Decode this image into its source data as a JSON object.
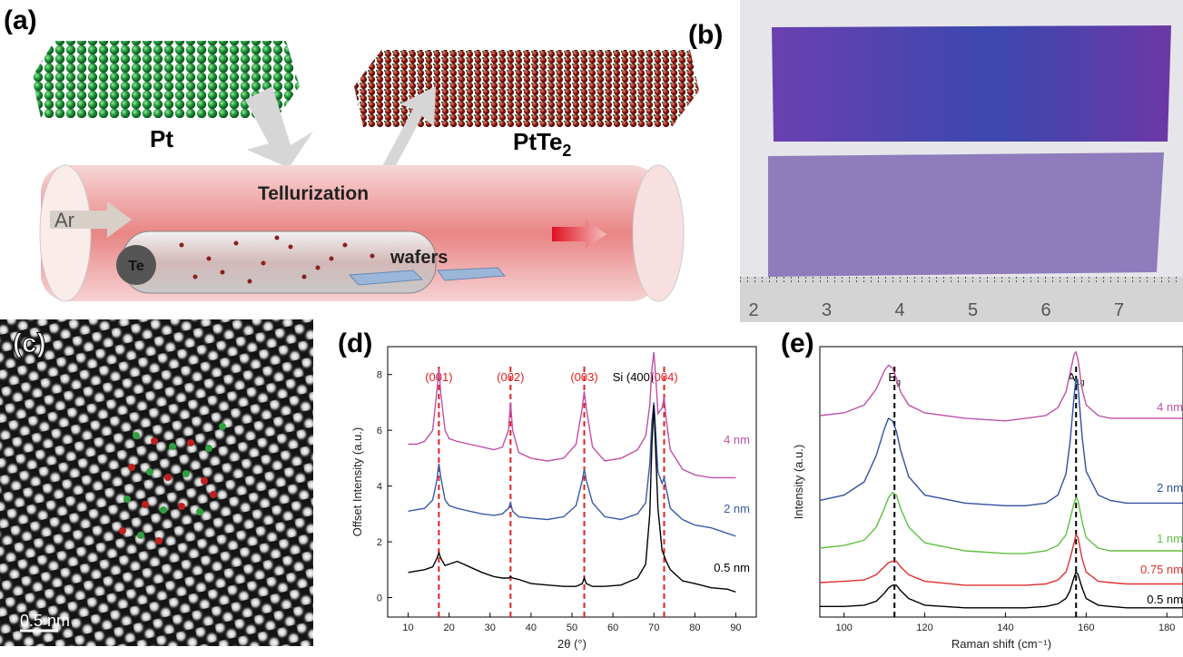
{
  "panel_labels": [
    "(a)",
    "(b)",
    "(c)",
    "(d)",
    "(e)"
  ],
  "schematic": {
    "pt_label": "Pt",
    "ptte2_label": "PtTe",
    "ptte2_subscript": "2",
    "process": "Tellurization",
    "gas": "Ar",
    "source": "Te",
    "substrate": "wafers"
  },
  "photo": {
    "ruler_labels": [
      "2",
      "3",
      "4",
      "5",
      "6",
      "7"
    ]
  },
  "micrograph": {
    "scale_bar": "0.5 nm"
  },
  "chart_data": [
    {
      "type": "line",
      "x_label": "2θ (°)",
      "y_label": "Offset Intensity (a.u.)",
      "x": [
        10,
        12,
        14,
        16,
        17,
        17.5,
        18,
        19,
        20,
        22,
        25,
        28,
        31,
        33,
        34.5,
        35,
        35.5,
        37,
        40,
        44,
        48,
        51,
        52.5,
        53,
        53.5,
        55,
        58,
        62,
        66,
        68,
        69,
        69.5,
        70,
        70.5,
        71,
        72,
        72.5,
        73,
        74,
        77,
        80,
        84,
        88,
        90
      ],
      "series": [
        {
          "name": "4 nm",
          "color": "#c050a8",
          "values": [
            5.5,
            5.5,
            5.6,
            6.0,
            7.4,
            8.2,
            7.3,
            6.0,
            5.7,
            5.6,
            5.5,
            5.4,
            5.3,
            5.4,
            6.0,
            7.0,
            6.0,
            5.2,
            5.0,
            4.9,
            5.0,
            5.5,
            6.8,
            7.4,
            6.8,
            5.4,
            4.9,
            5.0,
            5.3,
            5.8,
            6.9,
            8.2,
            8.8,
            7.8,
            6.6,
            6.8,
            7.2,
            6.4,
            5.3,
            4.6,
            4.4,
            4.3,
            4.3,
            4.3
          ]
        },
        {
          "name": "2 nm",
          "color": "#3a5aa8",
          "values": [
            3.1,
            3.15,
            3.2,
            3.5,
            4.2,
            4.8,
            4.3,
            3.5,
            3.3,
            3.2,
            3.1,
            3.0,
            2.95,
            3.0,
            3.2,
            3.4,
            3.1,
            2.9,
            2.85,
            2.8,
            2.9,
            3.3,
            4.2,
            4.6,
            4.2,
            3.4,
            2.9,
            2.8,
            3.0,
            3.4,
            4.8,
            6.3,
            7.0,
            5.8,
            4.5,
            4.1,
            4.3,
            3.9,
            3.2,
            2.8,
            2.6,
            2.5,
            2.3,
            2.2
          ]
        },
        {
          "name": "0.5 nm",
          "color": "#000000",
          "values": [
            0.9,
            0.95,
            1.0,
            1.1,
            1.4,
            1.6,
            1.4,
            1.15,
            1.2,
            1.3,
            1.1,
            0.9,
            0.75,
            0.7,
            0.7,
            0.75,
            0.7,
            0.65,
            0.5,
            0.45,
            0.4,
            0.4,
            0.5,
            0.7,
            0.5,
            0.4,
            0.4,
            0.45,
            0.7,
            1.2,
            3.0,
            5.5,
            6.9,
            5.0,
            3.2,
            1.7,
            1.5,
            1.3,
            1.0,
            0.6,
            0.5,
            0.35,
            0.3,
            0.2
          ]
        }
      ],
      "xlim": [
        5,
        95
      ],
      "xticks": [
        10,
        20,
        30,
        40,
        50,
        60,
        70,
        80,
        90
      ],
      "ylim": [
        -0.7,
        9
      ],
      "yticks": [
        0,
        2,
        4,
        6,
        8
      ],
      "reference_color": "#e02020",
      "reference_lines": [
        {
          "x": 17.5,
          "label": "(001)"
        },
        {
          "x": 35,
          "label": "(002)"
        },
        {
          "x": 53,
          "label": "(003)"
        },
        {
          "x": 72.5,
          "label": "(004)"
        }
      ],
      "annotations": [
        {
          "x": 70,
          "text": "Si (400)"
        }
      ]
    },
    {
      "type": "line",
      "x_label": "Raman shift (cm⁻¹)",
      "y_label": "Intensity (a.u.)",
      "x": [
        94,
        100,
        105,
        108,
        110,
        111,
        112,
        113,
        114,
        116,
        120,
        130,
        140,
        145,
        150,
        153,
        155,
        156,
        157,
        157.5,
        158,
        159,
        160,
        163,
        166,
        170,
        175,
        180,
        184
      ],
      "series": [
        {
          "name": "4 nm",
          "color": "#c050a8",
          "values": [
            7.6,
            7.7,
            8.0,
            8.6,
            9.3,
            9.5,
            9.4,
            9.0,
            8.5,
            8.0,
            7.7,
            7.5,
            7.4,
            7.5,
            7.6,
            7.9,
            8.5,
            9.2,
            9.9,
            10.0,
            9.7,
            8.6,
            8.0,
            7.6,
            7.5,
            7.5,
            7.5,
            7.5,
            7.5
          ]
        },
        {
          "name": "2 nm",
          "color": "#3050a0",
          "values": [
            4.4,
            4.6,
            5.1,
            6.1,
            7.1,
            7.5,
            7.4,
            7.0,
            6.3,
            5.3,
            4.6,
            4.3,
            4.2,
            4.2,
            4.3,
            4.6,
            5.4,
            6.6,
            8.3,
            9.0,
            8.7,
            6.8,
            5.5,
            4.6,
            4.4,
            4.3,
            4.3,
            4.3,
            4.3
          ]
        },
        {
          "name": "1 nm",
          "color": "#60c040",
          "values": [
            2.6,
            2.7,
            2.9,
            3.4,
            4.1,
            4.5,
            4.7,
            4.6,
            4.1,
            3.4,
            2.8,
            2.5,
            2.4,
            2.4,
            2.5,
            2.7,
            3.1,
            3.7,
            4.3,
            4.5,
            4.4,
            3.6,
            3.0,
            2.6,
            2.5,
            2.5,
            2.5,
            2.5,
            2.5
          ]
        },
        {
          "name": "0.75 nm",
          "color": "#e03030",
          "values": [
            1.3,
            1.35,
            1.4,
            1.6,
            1.9,
            2.05,
            2.1,
            2.1,
            1.9,
            1.6,
            1.35,
            1.2,
            1.2,
            1.2,
            1.25,
            1.4,
            1.7,
            2.2,
            2.8,
            3.1,
            3.0,
            2.2,
            1.7,
            1.35,
            1.3,
            1.25,
            1.25,
            1.25,
            1.25
          ]
        },
        {
          "name": "0.5 nm",
          "color": "#000000",
          "values": [
            0.4,
            0.4,
            0.45,
            0.6,
            0.9,
            1.1,
            1.2,
            1.2,
            1.0,
            0.7,
            0.45,
            0.35,
            0.35,
            0.35,
            0.4,
            0.5,
            0.7,
            1.0,
            1.5,
            1.7,
            1.6,
            1.1,
            0.7,
            0.45,
            0.4,
            0.35,
            0.35,
            0.35,
            0.35
          ]
        }
      ],
      "xlim": [
        94,
        184
      ],
      "xticks": [
        100,
        120,
        140,
        160,
        180
      ],
      "ylim": [
        0,
        10.2
      ],
      "reference_color": "#000000",
      "reference_lines": [
        {
          "x": 112.5,
          "label": "E",
          "sub": "g"
        },
        {
          "x": 157.5,
          "label": "A",
          "sub": "1g"
        }
      ]
    }
  ]
}
